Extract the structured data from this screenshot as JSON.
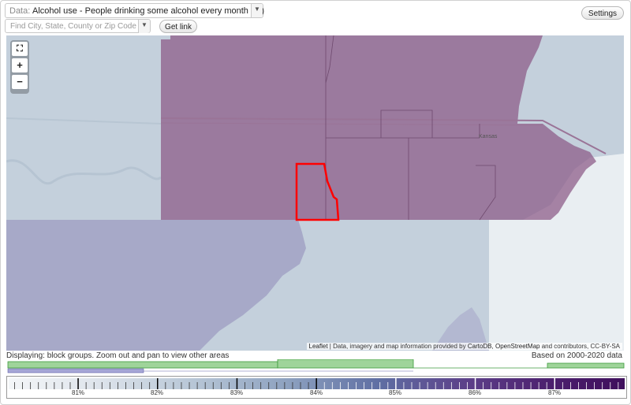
{
  "header": {
    "data_label": "Data:",
    "data_value": "Alcohol use - People drinking some alcohol every month (%)",
    "search_placeholder": "Find City, State, County or Zip Code",
    "get_link_label": "Get link",
    "settings_label": "Settings"
  },
  "map": {
    "zoom_fullscreen_icon": "fullscreen-icon",
    "zoom_in_label": "+",
    "zoom_out_label": "−",
    "city_label": "Kansas",
    "attribution_leaflet": "Leaflet",
    "attribution_text": " | Data, imagery and map information provided by ",
    "attribution_cartodb": "CartoDB",
    "attribution_sep": ", ",
    "attribution_osm": "OpenStreetMap",
    "attribution_end": " and contributors, CC-BY-SA",
    "colors": {
      "high": "#8d5d8a",
      "mid": "#a7a9c8",
      "low": "#c2d0de",
      "selected_outline": "#ff0000"
    }
  },
  "footer": {
    "status_text": "Displaying: block groups. Zoom out and pan to view other areas",
    "based_on_text": "Based on 2000-2020 data",
    "scale_labels": [
      "81%",
      "82%",
      "83%",
      "84%",
      "85%",
      "86%",
      "87%"
    ]
  }
}
